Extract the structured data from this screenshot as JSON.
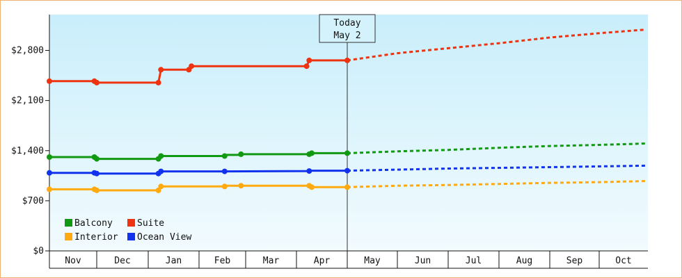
{
  "chart_data": {
    "type": "line",
    "months": [
      "Nov",
      "Dec",
      "Jan",
      "Feb",
      "Mar",
      "Apr",
      "May",
      "Jun",
      "Jul",
      "Aug",
      "Sep",
      "Oct"
    ],
    "y_ticks": [
      {
        "value": 0,
        "label": "$0"
      },
      {
        "value": 700,
        "label": "$700"
      },
      {
        "value": 1400,
        "label": "$1,400"
      },
      {
        "value": 2100,
        "label": "$2,100"
      },
      {
        "value": 2800,
        "label": "$2,800"
      }
    ],
    "ylim": [
      0,
      3300
    ],
    "today": {
      "line1": "Today",
      "line2": "May 2",
      "month_pos": 6.0
    },
    "series": [
      {
        "name": "Balcony",
        "color": "#119911",
        "history": [
          [
            0,
            1310
          ],
          [
            0.95,
            1310
          ],
          [
            1,
            1285
          ],
          [
            2.2,
            1285
          ],
          [
            2.25,
            1325
          ],
          [
            3.55,
            1325
          ],
          [
            3.6,
            1340
          ],
          [
            3.9,
            1340
          ],
          [
            3.95,
            1350
          ],
          [
            5.25,
            1350
          ],
          [
            5.3,
            1365
          ],
          [
            6.0,
            1365
          ]
        ],
        "points": [
          [
            0,
            1310
          ],
          [
            0.95,
            1310
          ],
          [
            1,
            1285
          ],
          [
            2.2,
            1285
          ],
          [
            2.25,
            1325
          ],
          [
            3.55,
            1325
          ],
          [
            3.9,
            1350
          ],
          [
            5.25,
            1350
          ],
          [
            5.3,
            1365
          ],
          [
            6.0,
            1365
          ]
        ],
        "forecast": [
          [
            6.0,
            1365
          ],
          [
            7,
            1390
          ],
          [
            8,
            1410
          ],
          [
            9,
            1440
          ],
          [
            10,
            1465
          ],
          [
            11,
            1480
          ],
          [
            11.95,
            1500
          ]
        ]
      },
      {
        "name": "Suite",
        "color": "#ee3311",
        "history": [
          [
            0,
            2370
          ],
          [
            0.95,
            2370
          ],
          [
            1,
            2350
          ],
          [
            2.2,
            2350
          ],
          [
            2.25,
            2530
          ],
          [
            2.8,
            2530
          ],
          [
            2.85,
            2580
          ],
          [
            5.2,
            2580
          ],
          [
            5.25,
            2660
          ],
          [
            6.0,
            2660
          ]
        ],
        "points": [
          [
            0,
            2370
          ],
          [
            0.95,
            2370
          ],
          [
            1,
            2350
          ],
          [
            2.2,
            2350
          ],
          [
            2.25,
            2530
          ],
          [
            2.8,
            2530
          ],
          [
            2.85,
            2580
          ],
          [
            5.2,
            2580
          ],
          [
            5.25,
            2660
          ],
          [
            6.0,
            2660
          ]
        ],
        "forecast": [
          [
            6.0,
            2660
          ],
          [
            7,
            2760
          ],
          [
            8,
            2830
          ],
          [
            9,
            2900
          ],
          [
            10,
            2980
          ],
          [
            11,
            3040
          ],
          [
            11.95,
            3090
          ]
        ]
      },
      {
        "name": "Interior",
        "color": "#ffaa11",
        "history": [
          [
            0,
            860
          ],
          [
            0.95,
            860
          ],
          [
            1,
            845
          ],
          [
            2.2,
            845
          ],
          [
            2.25,
            900
          ],
          [
            3.55,
            900
          ],
          [
            3.6,
            910
          ],
          [
            3.9,
            910
          ],
          [
            3.95,
            910
          ],
          [
            5.25,
            910
          ],
          [
            5.3,
            890
          ],
          [
            6.0,
            890
          ]
        ],
        "points": [
          [
            0,
            860
          ],
          [
            0.95,
            860
          ],
          [
            1,
            845
          ],
          [
            2.2,
            845
          ],
          [
            2.25,
            900
          ],
          [
            3.55,
            900
          ],
          [
            3.9,
            910
          ],
          [
            5.25,
            910
          ],
          [
            5.3,
            890
          ],
          [
            6.0,
            890
          ]
        ],
        "forecast": [
          [
            6.0,
            890
          ],
          [
            7,
            910
          ],
          [
            8,
            920
          ],
          [
            9,
            935
          ],
          [
            10,
            950
          ],
          [
            11,
            960
          ],
          [
            11.95,
            975
          ]
        ]
      },
      {
        "name": "Ocean View",
        "color": "#1133ee",
        "history": [
          [
            0,
            1090
          ],
          [
            0.95,
            1090
          ],
          [
            1,
            1080
          ],
          [
            2.2,
            1080
          ],
          [
            2.25,
            1110
          ],
          [
            3.55,
            1110
          ],
          [
            5.25,
            1115
          ],
          [
            5.3,
            1120
          ],
          [
            6.0,
            1120
          ]
        ],
        "points": [
          [
            0,
            1090
          ],
          [
            0.95,
            1090
          ],
          [
            1,
            1080
          ],
          [
            2.2,
            1080
          ],
          [
            2.25,
            1110
          ],
          [
            3.55,
            1110
          ],
          [
            5.25,
            1115
          ],
          [
            6.0,
            1120
          ]
        ],
        "forecast": [
          [
            6.0,
            1120
          ],
          [
            7,
            1135
          ],
          [
            8,
            1150
          ],
          [
            9,
            1160
          ],
          [
            10,
            1170
          ],
          [
            11,
            1180
          ],
          [
            11.95,
            1190
          ]
        ]
      }
    ],
    "legend": {
      "position": "bottom-left",
      "items": [
        {
          "label": "Balcony",
          "color": "#119911"
        },
        {
          "label": "Suite",
          "color": "#ee3311"
        },
        {
          "label": "Interior",
          "color": "#ffaa11"
        },
        {
          "label": "Ocean View",
          "color": "#1133ee"
        }
      ]
    }
  }
}
